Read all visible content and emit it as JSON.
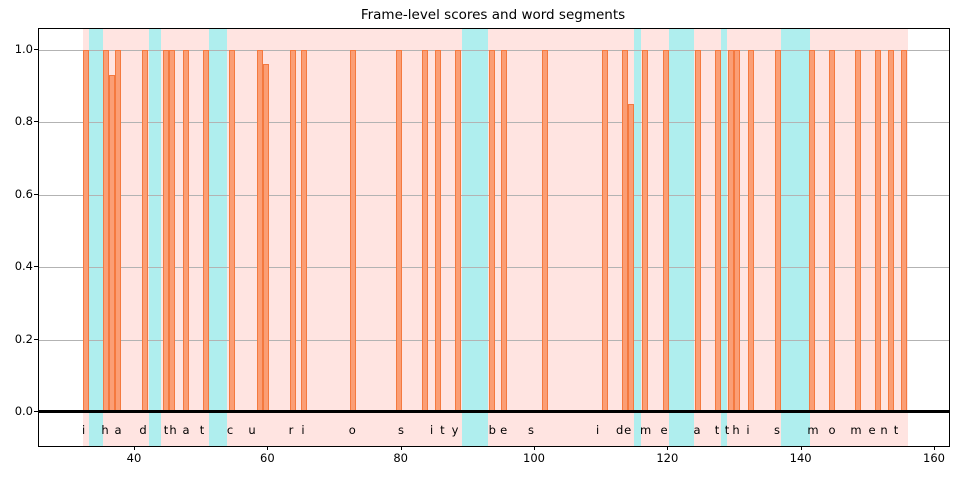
{
  "chart_data": {
    "type": "bar",
    "title": "Frame-level scores and word segments",
    "xlabel": "",
    "ylabel": "",
    "transcript": "i had that curiosity beside me at this moment",
    "xlim": [
      25.6,
      162.1
    ],
    "ylim": [
      -0.094,
      1.058
    ],
    "x_ticks": [
      40,
      60,
      80,
      100,
      120,
      140,
      160
    ],
    "x_tick_labels": [
      "40",
      "60",
      "80",
      "100",
      "120",
      "140",
      "160"
    ],
    "y_ticks": [
      0.0,
      0.2,
      0.4,
      0.6,
      0.8,
      1.0
    ],
    "y_tick_labels": [
      "0.0",
      "0.2",
      "0.4",
      "0.6",
      "0.8",
      "1.0"
    ],
    "grid": true,
    "legend": "none",
    "bar_width_units": 0.9,
    "bars": {
      "x": [
        32.65,
        35.65,
        36.5,
        37.4,
        41.5,
        44.7,
        45.5,
        47.65,
        50.6,
        54.55,
        58.75,
        59.65,
        63.7,
        65.4,
        72.7,
        79.6,
        83.5,
        85.45,
        88.45,
        93.55,
        95.35,
        101.5,
        110.5,
        113.5,
        114.4,
        116.5,
        119.65,
        124.45,
        127.45,
        129.4,
        130.3,
        132.4,
        136.45,
        141.55,
        144.5,
        148.45,
        151.45,
        153.4,
        155.3
      ],
      "score": [
        1.0,
        1.0,
        0.93,
        1.0,
        1.0,
        1.0,
        1.0,
        1.0,
        1.0,
        1.0,
        1.0,
        0.96,
        1.0,
        1.0,
        1.0,
        1.0,
        1.0,
        1.0,
        1.0,
        1.0,
        1.0,
        1.0,
        1.0,
        1.0,
        0.85,
        1.0,
        1.0,
        1.0,
        1.0,
        1.0,
        1.0,
        1.0,
        1.0,
        1.0,
        1.0,
        1.0,
        1.0,
        1.0,
        1.0
      ]
    },
    "word_segments": [
      {
        "word": "i",
        "start": 32.2,
        "end": 33.1
      },
      {
        "word": "had",
        "start": 35.2,
        "end": 42.1
      },
      {
        "word": "that",
        "start": 43.9,
        "end": 51.1
      },
      {
        "word": "curiosity",
        "start": 53.8,
        "end": 89.0
      },
      {
        "word": "beside",
        "start": 93.0,
        "end": 114.85
      },
      {
        "word": "me",
        "start": 115.9,
        "end": 120.1
      },
      {
        "word": "at",
        "start": 123.85,
        "end": 127.9
      },
      {
        "word": "this",
        "start": 128.8,
        "end": 136.9
      },
      {
        "word": "moment",
        "start": 141.3,
        "end": 156.0
      }
    ],
    "pause_segments": [
      {
        "start": 33.1,
        "end": 35.2
      },
      {
        "start": 42.1,
        "end": 43.9
      },
      {
        "start": 51.1,
        "end": 53.8
      },
      {
        "start": 89.0,
        "end": 93.0
      },
      {
        "start": 114.85,
        "end": 115.9
      },
      {
        "start": 120.1,
        "end": 123.85
      },
      {
        "start": 127.9,
        "end": 128.8
      },
      {
        "start": 136.9,
        "end": 141.3
      }
    ],
    "letters": [
      {
        "ch": "i",
        "x": 32.3
      },
      {
        "ch": "h",
        "x": 35.5
      },
      {
        "ch": "a",
        "x": 37.45
      },
      {
        "ch": "d",
        "x": 41.2
      },
      {
        "ch": "t",
        "x": 44.65
      },
      {
        "ch": "h",
        "x": 45.7
      },
      {
        "ch": "a",
        "x": 47.65
      },
      {
        "ch": "t",
        "x": 50.05
      },
      {
        "ch": "c",
        "x": 54.25
      },
      {
        "ch": "u",
        "x": 57.55
      },
      {
        "ch": "r",
        "x": 63.4
      },
      {
        "ch": "i",
        "x": 65.2
      },
      {
        "ch": "o",
        "x": 72.6
      },
      {
        "ch": "s",
        "x": 79.9
      },
      {
        "ch": "i",
        "x": 84.5
      },
      {
        "ch": "t",
        "x": 86.1
      },
      {
        "ch": "y",
        "x": 88.0
      },
      {
        "ch": "b",
        "x": 93.6
      },
      {
        "ch": "e",
        "x": 95.3
      },
      {
        "ch": "s",
        "x": 99.4
      },
      {
        "ch": "i",
        "x": 109.4
      },
      {
        "ch": "d",
        "x": 112.7
      },
      {
        "ch": "e",
        "x": 113.9
      },
      {
        "ch": "m",
        "x": 116.6
      },
      {
        "ch": "e",
        "x": 119.35
      },
      {
        "ch": "a",
        "x": 124.3
      },
      {
        "ch": "t",
        "x": 127.3
      },
      {
        "ch": "t",
        "x": 128.8
      },
      {
        "ch": "h",
        "x": 130.15
      },
      {
        "ch": "i",
        "x": 131.95
      },
      {
        "ch": "s",
        "x": 136.3
      },
      {
        "ch": "m",
        "x": 141.7
      },
      {
        "ch": "o",
        "x": 144.55
      },
      {
        "ch": "m",
        "x": 148.15
      },
      {
        "ch": "e",
        "x": 150.55
      },
      {
        "ch": "n",
        "x": 152.35
      },
      {
        "ch": "t",
        "x": 154.15
      }
    ],
    "colors": {
      "bar_fill": "#FB9E75",
      "bar_edge": "#F4793F",
      "word_band": "#FFE4E1",
      "pause_band": "#AFEEEE",
      "grid": "#B3B3B3",
      "baseline": "#000000",
      "spine": "#000000",
      "text": "#000000"
    }
  }
}
